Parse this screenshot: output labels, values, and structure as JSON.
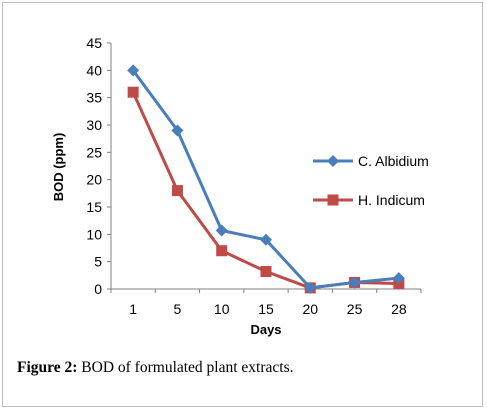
{
  "chart_data": {
    "type": "line",
    "categories": [
      "1",
      "5",
      "10",
      "15",
      "20",
      "25",
      "28"
    ],
    "series": [
      {
        "name": "C. Albidium",
        "color": "#4a7ebb",
        "marker": "diamond",
        "values": [
          40,
          29,
          10.7,
          9,
          0.2,
          1.2,
          2
        ]
      },
      {
        "name": "H. Indicum",
        "color": "#be4b48",
        "marker": "square",
        "values": [
          36,
          18,
          7,
          3.2,
          0.2,
          1.2,
          1
        ]
      }
    ],
    "xlabel": "Days",
    "ylabel": "BOD (ppm)",
    "ylim": [
      0,
      45
    ],
    "yticks": [
      0,
      5,
      10,
      15,
      20,
      25,
      30,
      35,
      40,
      45
    ],
    "grid": false,
    "legend_position": "right"
  },
  "caption": {
    "label": "Figure 2:",
    "text": " BOD of formulated plant extracts."
  }
}
